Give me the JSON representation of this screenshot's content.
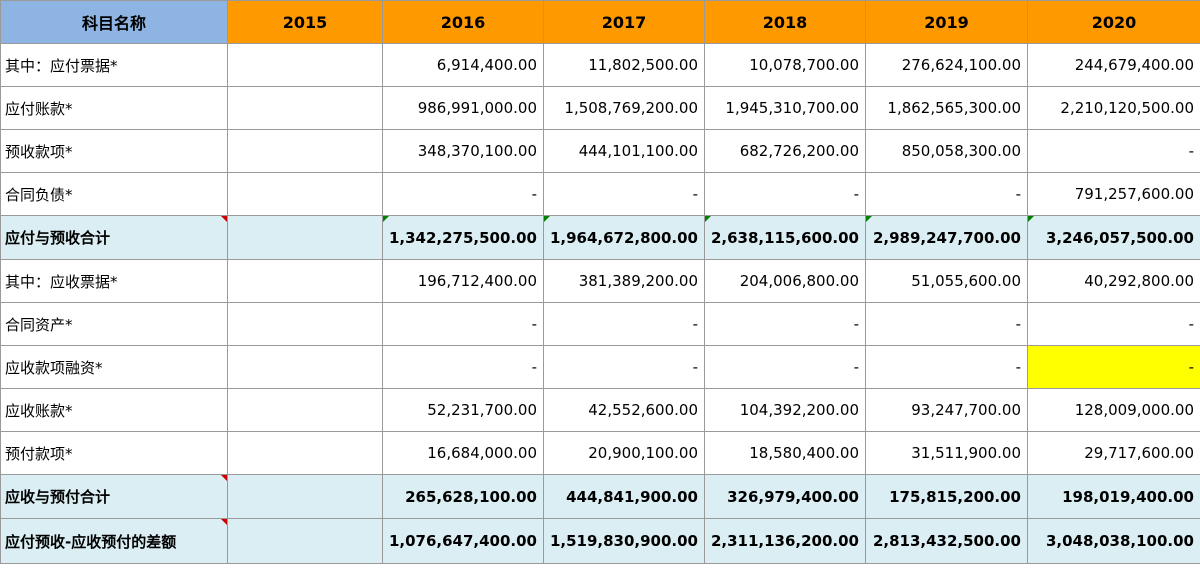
{
  "table": {
    "header": {
      "label": "科目名称",
      "years": [
        "2015",
        "2016",
        "2017",
        "2018",
        "2019",
        "2020"
      ]
    },
    "rows": [
      {
        "name": "其中：应付票据*",
        "values": [
          "",
          "6,914,400.00",
          "11,802,500.00",
          "10,078,700.00",
          "276,624,100.00",
          "244,679,400.00"
        ]
      },
      {
        "name": "应付账款*",
        "values": [
          "",
          "986,991,000.00",
          "1,508,769,200.00",
          "1,945,310,700.00",
          "1,862,565,300.00",
          "2,210,120,500.00"
        ]
      },
      {
        "name": "预收款项*",
        "values": [
          "",
          "348,370,100.00",
          "444,101,100.00",
          "682,726,200.00",
          "850,058,300.00",
          "-"
        ]
      },
      {
        "name": "合同负债*",
        "values": [
          "",
          "-",
          "-",
          "-",
          "-",
          "791,257,600.00"
        ]
      },
      {
        "name": "应付与预收合计",
        "values": [
          "",
          "1,342,275,500.00",
          "1,964,672,800.00",
          "2,638,115,600.00",
          "2,989,247,700.00",
          "3,246,057,500.00"
        ]
      },
      {
        "name": "其中：应收票据*",
        "values": [
          "",
          "196,712,400.00",
          "381,389,200.00",
          "204,006,800.00",
          "51,055,600.00",
          "40,292,800.00"
        ]
      },
      {
        "name": "合同资产*",
        "values": [
          "",
          "-",
          "-",
          "-",
          "-",
          "-"
        ]
      },
      {
        "name": "应收款项融资*",
        "values": [
          "",
          "-",
          "-",
          "-",
          "-",
          "-"
        ]
      },
      {
        "name": "应收账款*",
        "values": [
          "",
          "52,231,700.00",
          "42,552,600.00",
          "104,392,200.00",
          "93,247,700.00",
          "128,009,000.00"
        ]
      },
      {
        "name": "预付款项*",
        "values": [
          "",
          "16,684,000.00",
          "20,900,100.00",
          "18,580,400.00",
          "31,511,900.00",
          "29,717,600.00"
        ]
      },
      {
        "name": "应收与预付合计",
        "values": [
          "",
          "265,628,100.00",
          "444,841,900.00",
          "326,979,400.00",
          "175,815,200.00",
          "198,019,400.00"
        ]
      },
      {
        "name": "应付预收-应收预付的差额",
        "values": [
          "",
          "1,076,647,400.00",
          "1,519,830,900.00",
          "2,311,136,200.00",
          "2,813,432,500.00",
          "3,048,038,100.00"
        ]
      }
    ]
  },
  "colors": {
    "header_label_bg": "#8eb4e3",
    "header_year_bg": "#ff9900",
    "total_row_bg": "#daeef3",
    "highlight_cell_bg": "#ffff00",
    "comment_marker": "#cc0000",
    "formula_marker": "#008000"
  }
}
